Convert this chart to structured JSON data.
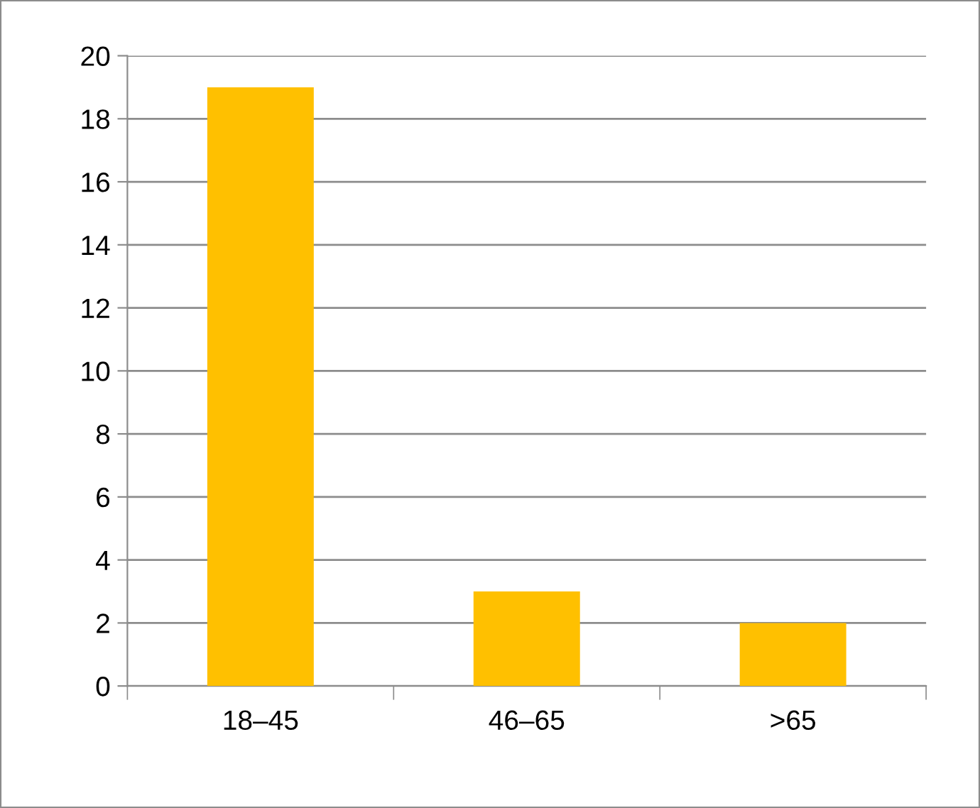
{
  "chart_data": {
    "type": "bar",
    "categories": [
      "18–45",
      "46–65",
      ">65"
    ],
    "values": [
      19,
      3,
      2
    ],
    "color": "#ffc000",
    "ylim": [
      0,
      20
    ],
    "yticks": [
      0,
      2,
      4,
      6,
      8,
      10,
      12,
      14,
      16,
      18,
      20
    ],
    "grid": "y",
    "legend": false
  }
}
